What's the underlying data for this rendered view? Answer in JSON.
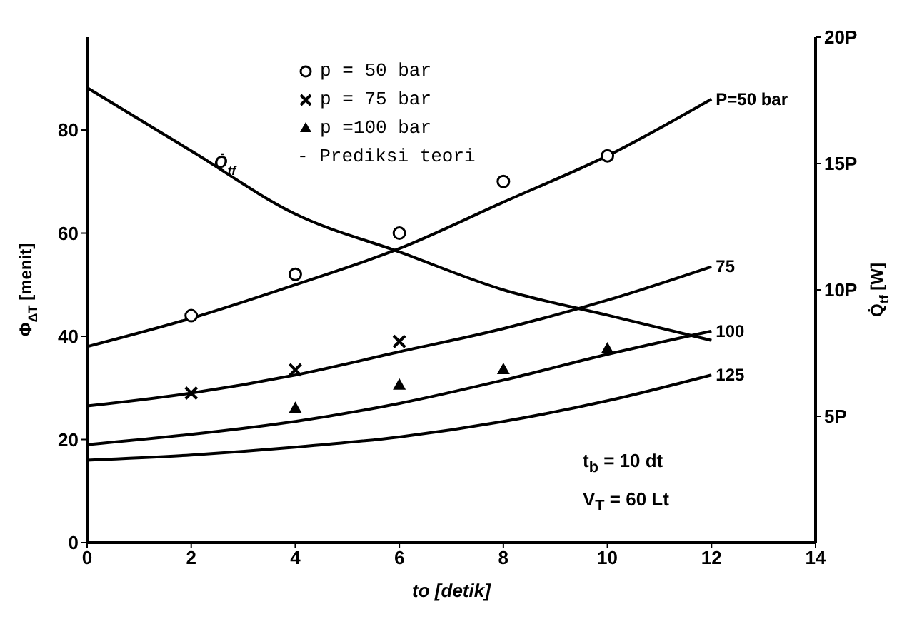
{
  "chart_data": {
    "type": "line",
    "xlabel": "to [detik]",
    "ylabel": "Φ$_{ΔT}$ [menit]",
    "y2label": "Q̇$_{tf}$ [W]",
    "xlim": [
      0,
      14
    ],
    "xticks": [
      0,
      2,
      4,
      6,
      8,
      10,
      12,
      14
    ],
    "ylim": [
      0,
      98
    ],
    "yticks": [
      0,
      20,
      40,
      60,
      80
    ],
    "y2lim": [
      0,
      20
    ],
    "y2ticks": [
      {
        "value": 5,
        "label": "5P"
      },
      {
        "value": 10,
        "label": "10P"
      },
      {
        "value": 15,
        "label": "15P"
      },
      {
        "value": 20,
        "label": "20P"
      }
    ],
    "legend": "top",
    "line_style": "solid",
    "series": [
      {
        "name": "P=50 bar",
        "color": "#000000",
        "marker": "none",
        "x": [
          0,
          2,
          4,
          6,
          8,
          10,
          12
        ],
        "values": [
          38,
          43.5,
          50,
          57,
          66,
          75,
          86
        ]
      },
      {
        "name": "75",
        "color": "#000000",
        "marker": "none",
        "x": [
          0,
          2,
          4,
          6,
          8,
          10,
          12
        ],
        "values": [
          26.5,
          29,
          32.5,
          37,
          41.5,
          47,
          53.5
        ]
      },
      {
        "name": "100",
        "color": "#000000",
        "marker": "none",
        "x": [
          0,
          2,
          4,
          6,
          8,
          10,
          12
        ],
        "values": [
          19,
          21,
          23.5,
          27,
          31.5,
          36.5,
          41
        ]
      },
      {
        "name": "125",
        "color": "#000000",
        "marker": "none",
        "x": [
          0,
          2,
          4,
          6,
          8,
          10,
          12
        ],
        "values": [
          16,
          17,
          18.5,
          20.5,
          23.5,
          27.5,
          32.5
        ]
      },
      {
        "name": "Q̇$_{tf}$",
        "axis": "y2",
        "color": "#000000",
        "marker": "none",
        "x": [
          0,
          2,
          4,
          6,
          8,
          10,
          12
        ],
        "values": [
          18,
          15.5,
          13,
          11.5,
          10,
          9,
          8
        ]
      },
      {
        "name": "p = 50 bar",
        "type": "scatter",
        "color": "#000000",
        "marker": "circle",
        "x": [
          2,
          4,
          6,
          8,
          10
        ],
        "values": [
          44,
          52,
          60,
          70,
          75
        ]
      },
      {
        "name": "p = 75 bar",
        "type": "scatter",
        "color": "#000000",
        "marker": "cross",
        "x": [
          2,
          4,
          6
        ],
        "values": [
          29,
          33.5,
          39
        ]
      },
      {
        "name": "p =100 bar",
        "type": "scatter",
        "color": "#000000",
        "marker": "triangle",
        "x": [
          4,
          6,
          8,
          10
        ],
        "values": [
          26,
          30.5,
          33.5,
          37.5
        ]
      }
    ],
    "annotations": [
      "- Prediksi teori",
      "t$_{b}$ = 10 dt",
      "V$_{T}$ = 60 Lt"
    ]
  }
}
